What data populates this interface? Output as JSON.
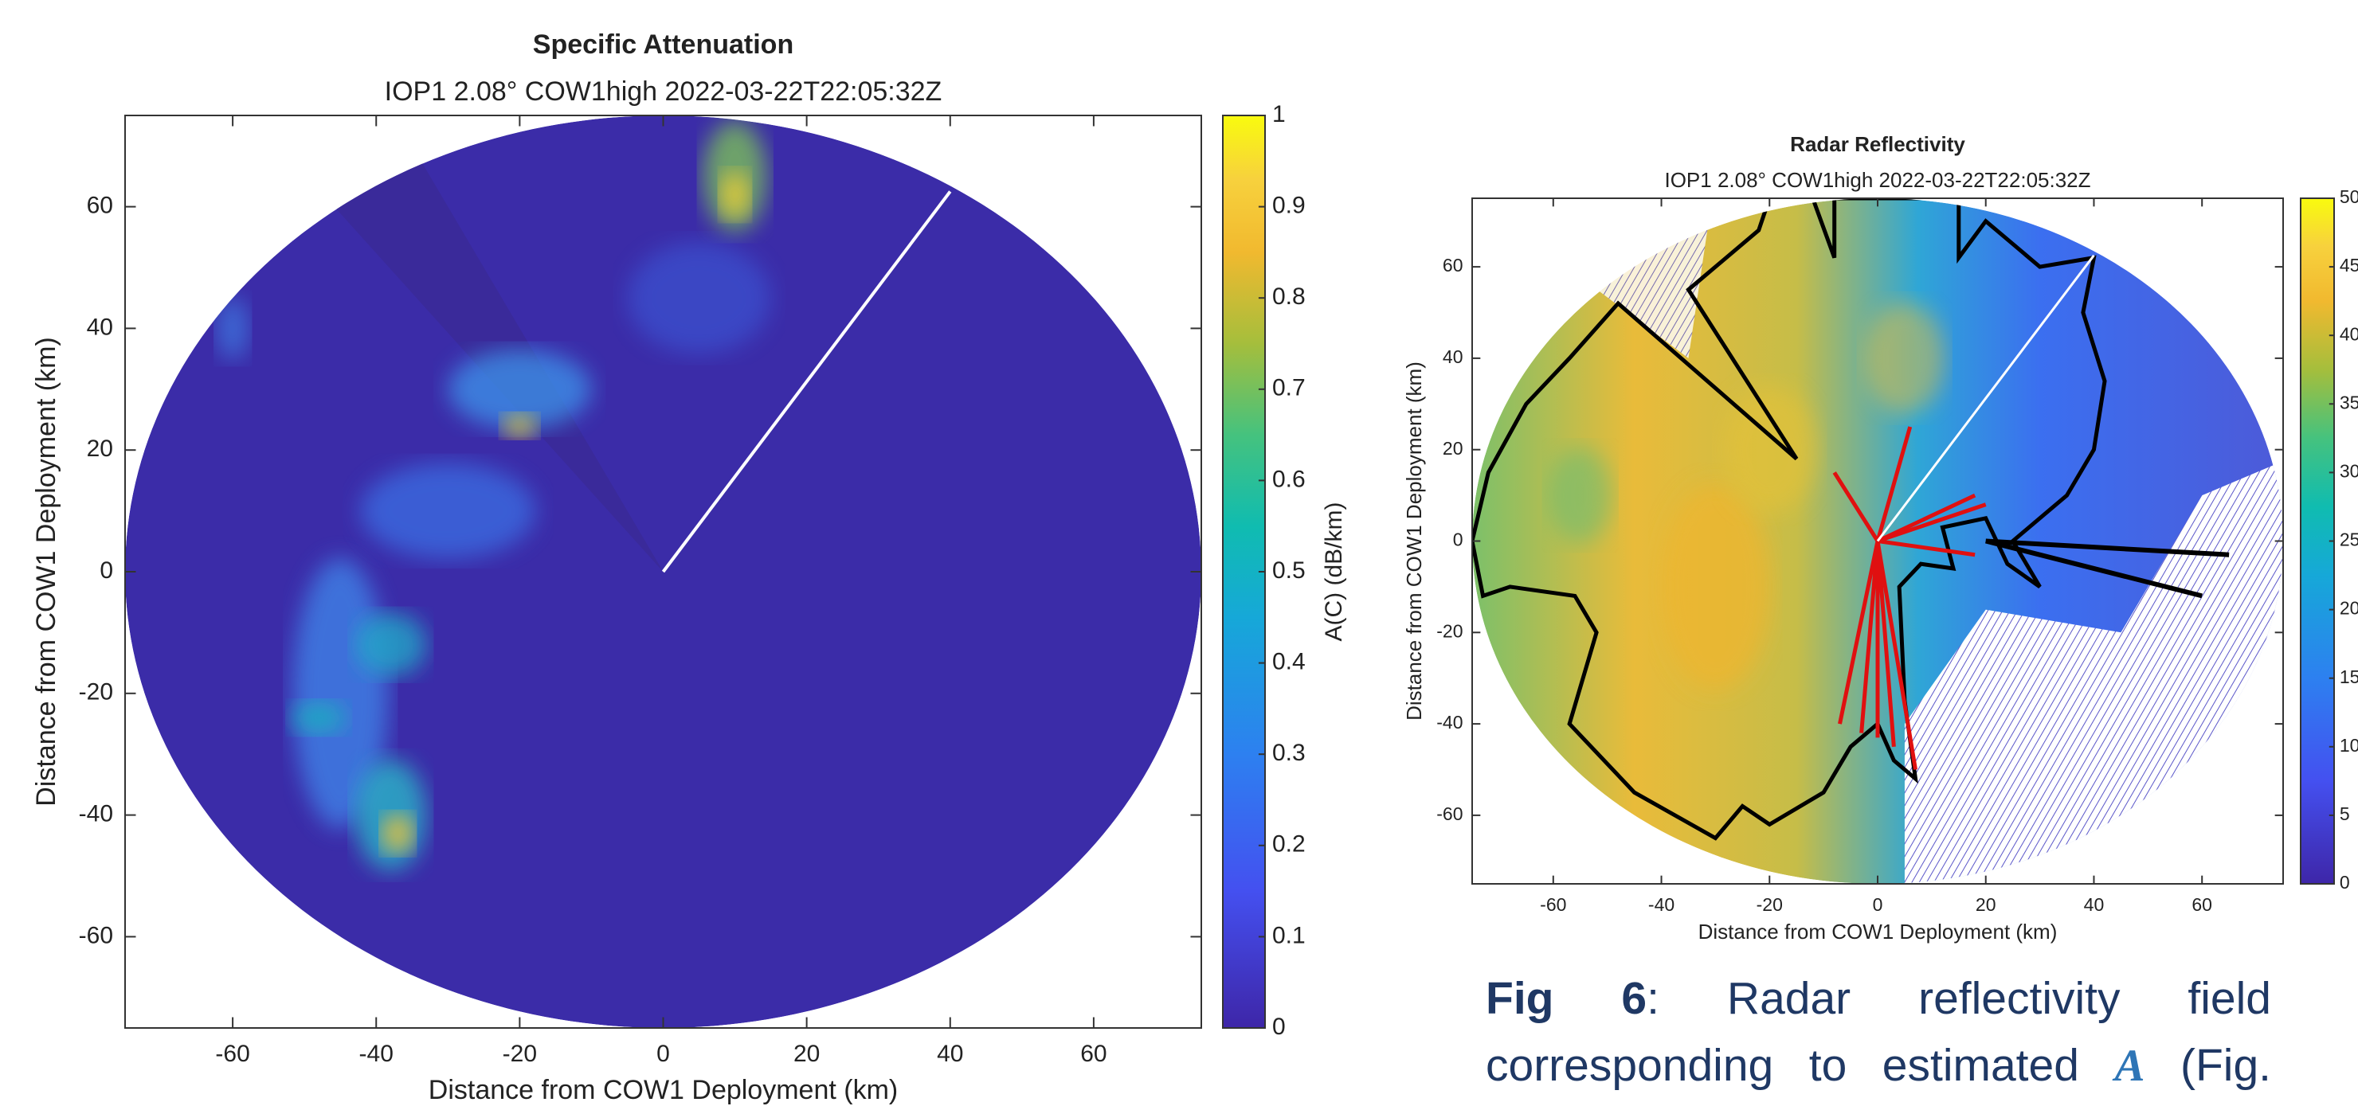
{
  "chart_data": [
    {
      "type": "radar",
      "title": "Specific Attenuation",
      "subtitle": "IOP1 2.08° COW1high 2022-03-22T22:05:32Z",
      "xlabel": "Distance from COW1 Deployment (km)",
      "ylabel": "Distance from COW1 Deployment (km)",
      "xlim": [
        -75,
        75
      ],
      "ylim": [
        -75,
        75
      ],
      "xticks": [
        -60,
        -40,
        -20,
        0,
        20,
        40,
        60
      ],
      "yticks": [
        -60,
        -40,
        -20,
        0,
        20,
        40,
        60
      ],
      "clabel": "A(C) (dB/km)",
      "clim": [
        0,
        1
      ],
      "cticks": [
        0,
        0.1,
        0.2,
        0.3,
        0.4,
        0.5,
        0.6,
        0.7,
        0.8,
        0.9,
        1
      ]
    },
    {
      "type": "radar",
      "title": "Radar Reflectivity",
      "subtitle": "IOP1 2.08° COW1high 2022-03-22T22:05:32Z",
      "xlabel": "Distance from COW1 Deployment (km)",
      "ylabel": "Distance from COW1 Deployment (km)",
      "xlim": [
        -75,
        75
      ],
      "ylim": [
        -75,
        75
      ],
      "xticks": [
        -60,
        -40,
        -20,
        0,
        20,
        40,
        60
      ],
      "yticks": [
        -60,
        -40,
        -20,
        0,
        20,
        40,
        60
      ],
      "clim": [
        0,
        50
      ],
      "cticks": [
        0,
        5,
        10,
        15,
        20,
        25,
        30,
        35,
        40,
        45,
        50
      ]
    }
  ],
  "caption": {
    "label": "Fig 6",
    "text": ": Radar reflectivity field corresponding to estimated ",
    "symbol": "A",
    "tail": " (Fig."
  }
}
